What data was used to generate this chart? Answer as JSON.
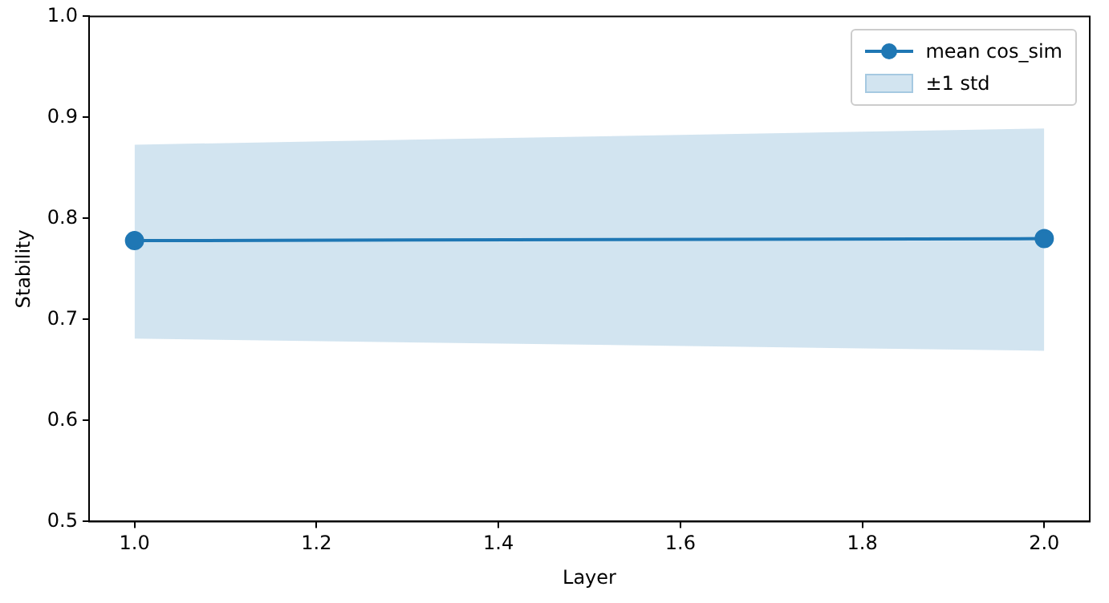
{
  "chart_data": {
    "type": "line",
    "xlabel": "Layer",
    "ylabel": "Stability",
    "x": [
      1,
      2
    ],
    "series": [
      {
        "name": "mean cos_sim",
        "color": "#1f77b4",
        "values": [
          0.778,
          0.78
        ],
        "lower": [
          0.681,
          0.669
        ],
        "upper": [
          0.873,
          0.889
        ]
      }
    ],
    "annotations": [
      "±1 std"
    ],
    "xlim": [
      0.95,
      2.05
    ],
    "xticks": [
      {
        "value": 1,
        "label": "1.0"
      },
      {
        "value": 1.2,
        "label": "1.2"
      },
      {
        "value": 1.4,
        "label": "1.4"
      },
      {
        "value": 1.6,
        "label": "1.6"
      },
      {
        "value": 1.8,
        "label": "1.8"
      },
      {
        "value": 2,
        "label": "2.0"
      }
    ],
    "ylim": [
      0.5,
      1
    ],
    "yticks": [
      0.5,
      0.6,
      0.7,
      0.8,
      0.9,
      {
        "value": 1,
        "label": "1.0"
      }
    ],
    "marker": "circle",
    "line_style": "solid",
    "legend": "top right",
    "grid": false
  }
}
